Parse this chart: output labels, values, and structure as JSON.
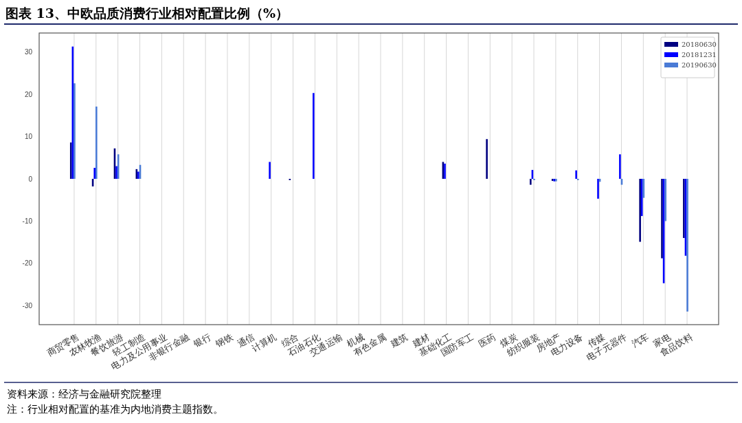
{
  "chart_data": {
    "type": "bar",
    "title": "图表 13、中欧品质消费行业相对配置比例（%）",
    "categories": [
      "商贸零售",
      "农林牧渔",
      "餐饮旅游",
      "轻工制造",
      "电力及公用事业",
      "非银行金融",
      "银行",
      "钢铁",
      "通信",
      "计算机",
      "综合",
      "石油石化",
      "交通运输",
      "机械",
      "有色金属",
      "建筑",
      "建材",
      "基础化工",
      "国防军工",
      "医药",
      "煤炭",
      "纺织服装",
      "房地产",
      "电力设备",
      "传媒",
      "电子元器件",
      "汽车",
      "家电",
      "食品饮料"
    ],
    "series": [
      {
        "name": "20180630",
        "color": "#000080",
        "values": [
          8.6,
          -1.8,
          7.2,
          2.3,
          0,
          0,
          0,
          0,
          0,
          0,
          -0.3,
          0,
          0,
          0,
          0,
          0,
          0,
          4.0,
          0,
          9.4,
          0,
          -1.4,
          -0.5,
          0,
          0,
          0,
          -14.9,
          -18.8,
          -14.0
        ]
      },
      {
        "name": "20181231",
        "color": "#0000ff",
        "values": [
          31.3,
          2.6,
          3.0,
          1.7,
          0,
          0,
          0,
          0,
          0,
          4.0,
          0,
          20.3,
          0,
          0,
          0,
          0,
          0,
          3.6,
          0,
          0,
          0,
          2.1,
          -0.6,
          2.0,
          -4.7,
          5.8,
          -8.8,
          -24.7,
          -18.2
        ]
      },
      {
        "name": "20190630",
        "color": "#4a7bd6",
        "values": [
          22.6,
          17.1,
          5.8,
          3.3,
          0,
          0,
          0,
          0,
          0,
          0,
          0,
          0,
          0,
          0,
          0,
          0,
          0,
          0,
          0,
          0,
          0,
          -0.3,
          -0.6,
          -0.3,
          -0.7,
          -1.4,
          -4.5,
          -10.0,
          -31.4
        ]
      }
    ],
    "ylim": [
      -34.5,
      34.5
    ],
    "yticks": [
      -30,
      -20,
      -10,
      0,
      10,
      20,
      30
    ],
    "grid": "x",
    "legend": "top right",
    "annotations": [
      "资料来源：经济与金融研究院整理",
      "注：行业相对配置的基准为内地消费主题指数。"
    ]
  }
}
